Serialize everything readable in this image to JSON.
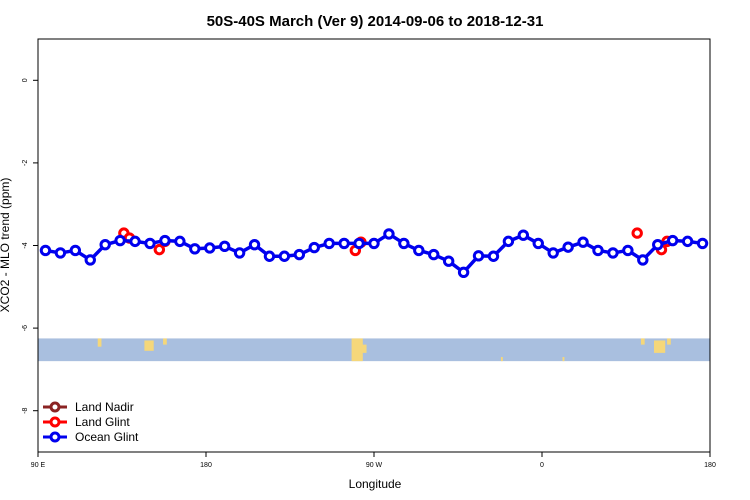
{
  "chart_data": {
    "type": "line",
    "title": "50S-40S March (Ver 9)   2014-09-06 to 2018-12-31",
    "xlabel": "Longitude",
    "ylabel": "XCO2 - MLO trend (ppm)",
    "xlim": [
      90,
      450
    ],
    "ylim": [
      -9,
      1
    ],
    "x_ticks": [
      {
        "value": 90,
        "label": "90 E"
      },
      {
        "value": 180,
        "label": "180"
      },
      {
        "value": 270,
        "label": "90 W"
      },
      {
        "value": 360,
        "label": "0"
      },
      {
        "value": 450,
        "label": "180"
      }
    ],
    "y_ticks": [
      {
        "value": 0,
        "label": "0"
      },
      {
        "value": -2,
        "label": "-2"
      },
      {
        "value": -4,
        "label": "-4"
      },
      {
        "value": -6,
        "label": "-6"
      },
      {
        "value": -8,
        "label": "-8"
      }
    ],
    "grid": false,
    "legend_position": "bottom-left",
    "map_strip": {
      "y_top": -6.25,
      "y_bottom": -6.8,
      "ocean_color": "#a9bfdf",
      "land_color": "#f5d77a"
    },
    "series": [
      {
        "name": "Land Nadir",
        "color": "#8b2323",
        "x": [],
        "y": []
      },
      {
        "name": "Land Glint",
        "color": "#ff0000",
        "x": [
          136,
          139,
          155,
          158,
          260,
          263,
          411,
          424,
          427
        ],
        "y": [
          -3.7,
          -3.82,
          -4.1,
          -3.9,
          -4.12,
          -3.92,
          -3.7,
          -4.1,
          -3.9
        ]
      },
      {
        "name": "Ocean Glint",
        "color": "#0000ee",
        "x": [
          94,
          102,
          110,
          118,
          126,
          134,
          142,
          150,
          158,
          166,
          174,
          182,
          190,
          198,
          206,
          214,
          222,
          230,
          238,
          246,
          254,
          262,
          270,
          278,
          286,
          294,
          302,
          310,
          318,
          326,
          334,
          342,
          350,
          358,
          366,
          374,
          382,
          390,
          398,
          406,
          414,
          422,
          430,
          438,
          446
        ],
        "y": [
          -4.12,
          -4.18,
          -4.12,
          -4.35,
          -3.98,
          -3.88,
          -3.9,
          -3.95,
          -3.88,
          -3.9,
          -4.08,
          -4.06,
          -4.02,
          -4.18,
          -3.98,
          -4.26,
          -4.26,
          -4.22,
          -4.05,
          -3.95,
          -3.95,
          -3.95,
          -3.95,
          -3.72,
          -3.95,
          -4.12,
          -4.22,
          -4.38,
          -4.65,
          -4.25,
          -4.26,
          -3.9,
          -3.75,
          -3.95,
          -4.18,
          -4.04,
          -3.92,
          -4.12,
          -4.18,
          -4.12,
          -4.35,
          -3.98,
          -3.88,
          -3.9,
          -3.95
        ]
      }
    ]
  }
}
